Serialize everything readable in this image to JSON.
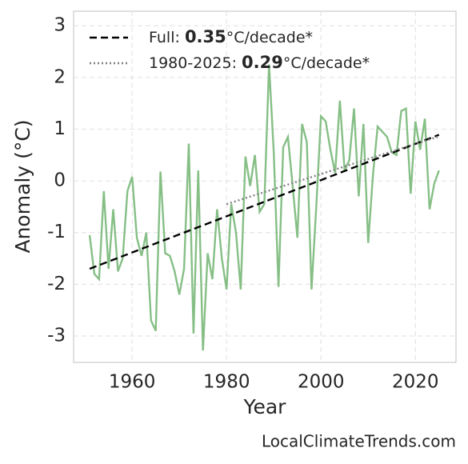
{
  "chart_data": {
    "type": "line",
    "xlabel": "Year",
    "ylabel": "Anomaly (°C)",
    "watermark": "LocalClimateTrends.com",
    "xlim": [
      1947.6,
      2028.6
    ],
    "ylim": [
      -3.51,
      3.28
    ],
    "xticks": [
      1960,
      1980,
      2000,
      2020
    ],
    "yticks": [
      -3,
      -2,
      -1,
      0,
      1,
      2,
      3
    ],
    "grid": true,
    "legend": "upper left",
    "series": [
      {
        "color": "#86bf86",
        "style": "solid",
        "x": [
          1951,
          1952,
          1953,
          1954,
          1955,
          1956,
          1957,
          1958,
          1959,
          1960,
          1961,
          1962,
          1963,
          1964,
          1965,
          1966,
          1967,
          1968,
          1969,
          1970,
          1971,
          1972,
          1973,
          1974,
          1975,
          1976,
          1977,
          1978,
          1979,
          1980,
          1981,
          1982,
          1983,
          1984,
          1985,
          1986,
          1987,
          1988,
          1989,
          1990,
          1991,
          1992,
          1993,
          1994,
          1995,
          1996,
          1997,
          1998,
          1999,
          2000,
          2001,
          2002,
          2003,
          2004,
          2005,
          2006,
          2007,
          2008,
          2009,
          2010,
          2011,
          2012,
          2013,
          2014,
          2015,
          2016,
          2017,
          2018,
          2019,
          2020,
          2021,
          2022,
          2023,
          2024,
          2025
        ],
        "values": [
          -1.05,
          -1.8,
          -1.9,
          -0.2,
          -1.7,
          -0.55,
          -1.75,
          -1.5,
          -0.2,
          0.08,
          -1.1,
          -1.45,
          -1.0,
          -2.7,
          -2.9,
          0.18,
          -1.4,
          -1.45,
          -1.75,
          -2.2,
          -1.7,
          0.72,
          -2.95,
          0.2,
          -3.28,
          -1.4,
          -1.9,
          -0.55,
          -1.5,
          -2.1,
          -0.45,
          -1.0,
          -2.1,
          0.47,
          -0.1,
          0.5,
          -0.6,
          -0.45,
          2.25,
          0.55,
          -2.05,
          0.65,
          0.85,
          -0.1,
          -1.1,
          1.1,
          0.75,
          -2.1,
          -0.5,
          1.25,
          1.15,
          0.6,
          0.15,
          1.55,
          0.2,
          0.4,
          1.4,
          -0.3,
          1.1,
          -1.2,
          0.1,
          1.05,
          0.95,
          0.85,
          0.55,
          0.5,
          1.35,
          1.4,
          -0.25,
          1.15,
          0.6,
          1.2,
          -0.55,
          -0.05,
          0.2
        ]
      },
      {
        "color": "#000000",
        "style": "dashed",
        "name_parts": [
          "Full: ",
          "0.35",
          "°C/decade*"
        ],
        "x": [
          1951,
          2025
        ],
        "values": [
          -1.7,
          0.89
        ]
      },
      {
        "color": "#808080",
        "style": "dotted",
        "name_parts": [
          "1980-2025: ",
          "0.29",
          "°C/decade*"
        ],
        "x": [
          1980,
          2025
        ],
        "values": [
          -0.45,
          0.86
        ]
      }
    ]
  }
}
